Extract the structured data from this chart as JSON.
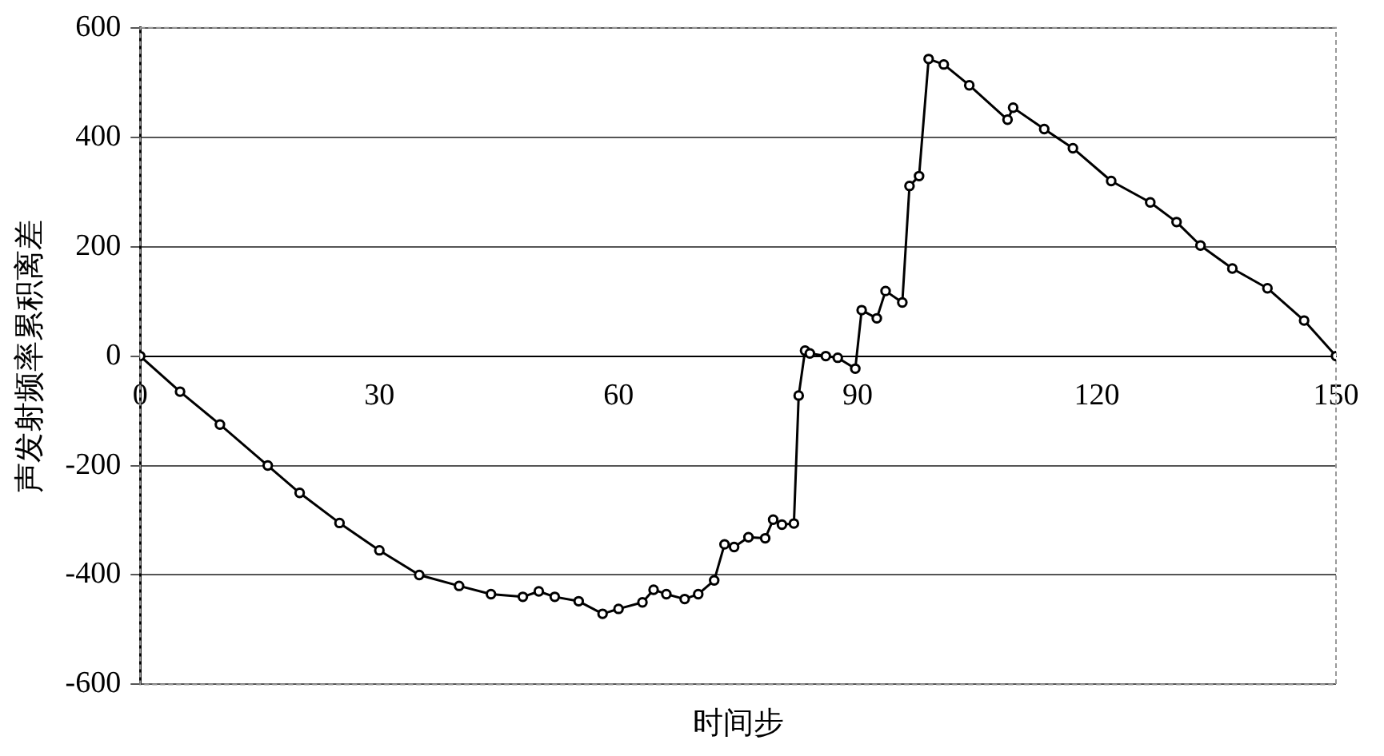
{
  "chart_data": {
    "type": "line",
    "xlabel": "时间步",
    "ylabel": "声发射频率累积离差",
    "x": [
      0,
      5,
      10,
      16,
      20,
      25,
      30,
      35,
      40,
      44,
      48,
      50,
      52,
      55,
      58,
      60,
      63,
      64.4,
      66,
      68.3,
      70,
      72,
      73.3,
      74.5,
      76.3,
      78.4,
      79.4,
      80.5,
      82,
      82.6,
      83.4,
      84,
      86,
      87.5,
      89.7,
      90.5,
      92.4,
      93.5,
      95.6,
      96.5,
      97.7,
      98.9,
      100.8,
      104,
      108.8,
      109.5,
      113.4,
      117,
      121.8,
      126.7,
      130,
      133,
      137,
      141.4,
      146,
      150
    ],
    "series": [
      {
        "color": "#000000",
        "values": [
          0,
          -65,
          -125,
          -200,
          -250,
          -305,
          -355,
          -400,
          -420,
          -435,
          -440,
          -430,
          -440,
          -448,
          -471,
          -462,
          -450,
          -427,
          -435,
          -444,
          -435,
          -410,
          -344,
          -349,
          -331,
          -333,
          -299,
          -308,
          -306,
          -72,
          10,
          5,
          0,
          -3,
          -23,
          84,
          69,
          119,
          98,
          311,
          329,
          543,
          533,
          495,
          432,
          454,
          415,
          380,
          320,
          281,
          245,
          202,
          160,
          124,
          65,
          0
        ]
      }
    ],
    "xlim": [
      0,
      150
    ],
    "xticks": [
      0,
      30,
      60,
      90,
      120,
      150
    ],
    "ylim": [
      -600,
      600
    ],
    "yticks": [
      -600,
      -400,
      -200,
      0,
      200,
      400,
      600
    ],
    "grid": "y",
    "marker": "circle",
    "line_style": "solid",
    "legend": false
  }
}
